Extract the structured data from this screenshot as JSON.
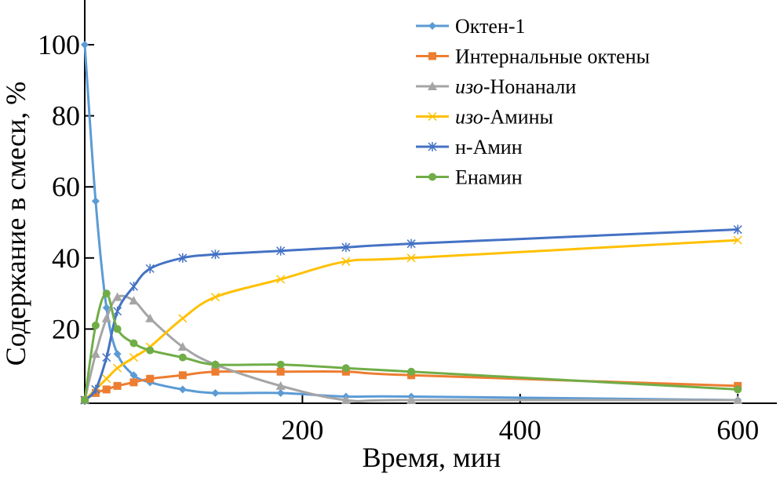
{
  "chart_data": {
    "type": "line",
    "title": "",
    "xlabel": "Время, мин",
    "ylabel": "Содержание в смеси, %",
    "xlim": [
      0,
      620
    ],
    "ylim": [
      0,
      110
    ],
    "xticks": [
      200,
      400,
      600
    ],
    "yticks": [
      20,
      40,
      60,
      80,
      100
    ],
    "grid": false,
    "legend_position": "top-right",
    "x": [
      0,
      10,
      20,
      30,
      45,
      60,
      90,
      120,
      180,
      240,
      300,
      600
    ],
    "series": [
      {
        "name": "Октен-1",
        "prefix": "",
        "rest": "Октен-1",
        "color": "#5b9bd5",
        "marker": "diamond",
        "values": [
          100,
          56,
          26,
          13,
          7,
          5,
          3,
          2,
          2,
          1,
          1,
          0
        ]
      },
      {
        "name": "Интернальные октены",
        "prefix": "",
        "rest": "Интернальные октены",
        "color": "#ed7d31",
        "marker": "square",
        "values": [
          0,
          2,
          3,
          4,
          5,
          6,
          7,
          8,
          8,
          8,
          7,
          4
        ]
      },
      {
        "name": "изо-Нонанали",
        "prefix": "изо",
        "rest": "-Нонанали",
        "color": "#a5a5a5",
        "marker": "triangle",
        "values": [
          0,
          13,
          23,
          29,
          28,
          23,
          15,
          10,
          4,
          0,
          0,
          0
        ]
      },
      {
        "name": "изо-Амины",
        "prefix": "изо",
        "rest": "-Амины",
        "color": "#ffc000",
        "marker": "x",
        "values": [
          0,
          3,
          6,
          9,
          12,
          15,
          23,
          29,
          34,
          39,
          40,
          45
        ]
      },
      {
        "name": "н-Амин",
        "prefix": "",
        "rest": "н-Амин",
        "color": "#4472c4",
        "marker": "star",
        "values": [
          0,
          3,
          12,
          25,
          32,
          37,
          40,
          41,
          42,
          43,
          44,
          48
        ]
      },
      {
        "name": "Енамин",
        "prefix": "",
        "rest": "Енамин",
        "color": "#70ad47",
        "marker": "circle",
        "values": [
          0,
          21,
          30,
          20,
          16,
          14,
          12,
          10,
          10,
          9,
          8,
          3
        ]
      }
    ]
  }
}
